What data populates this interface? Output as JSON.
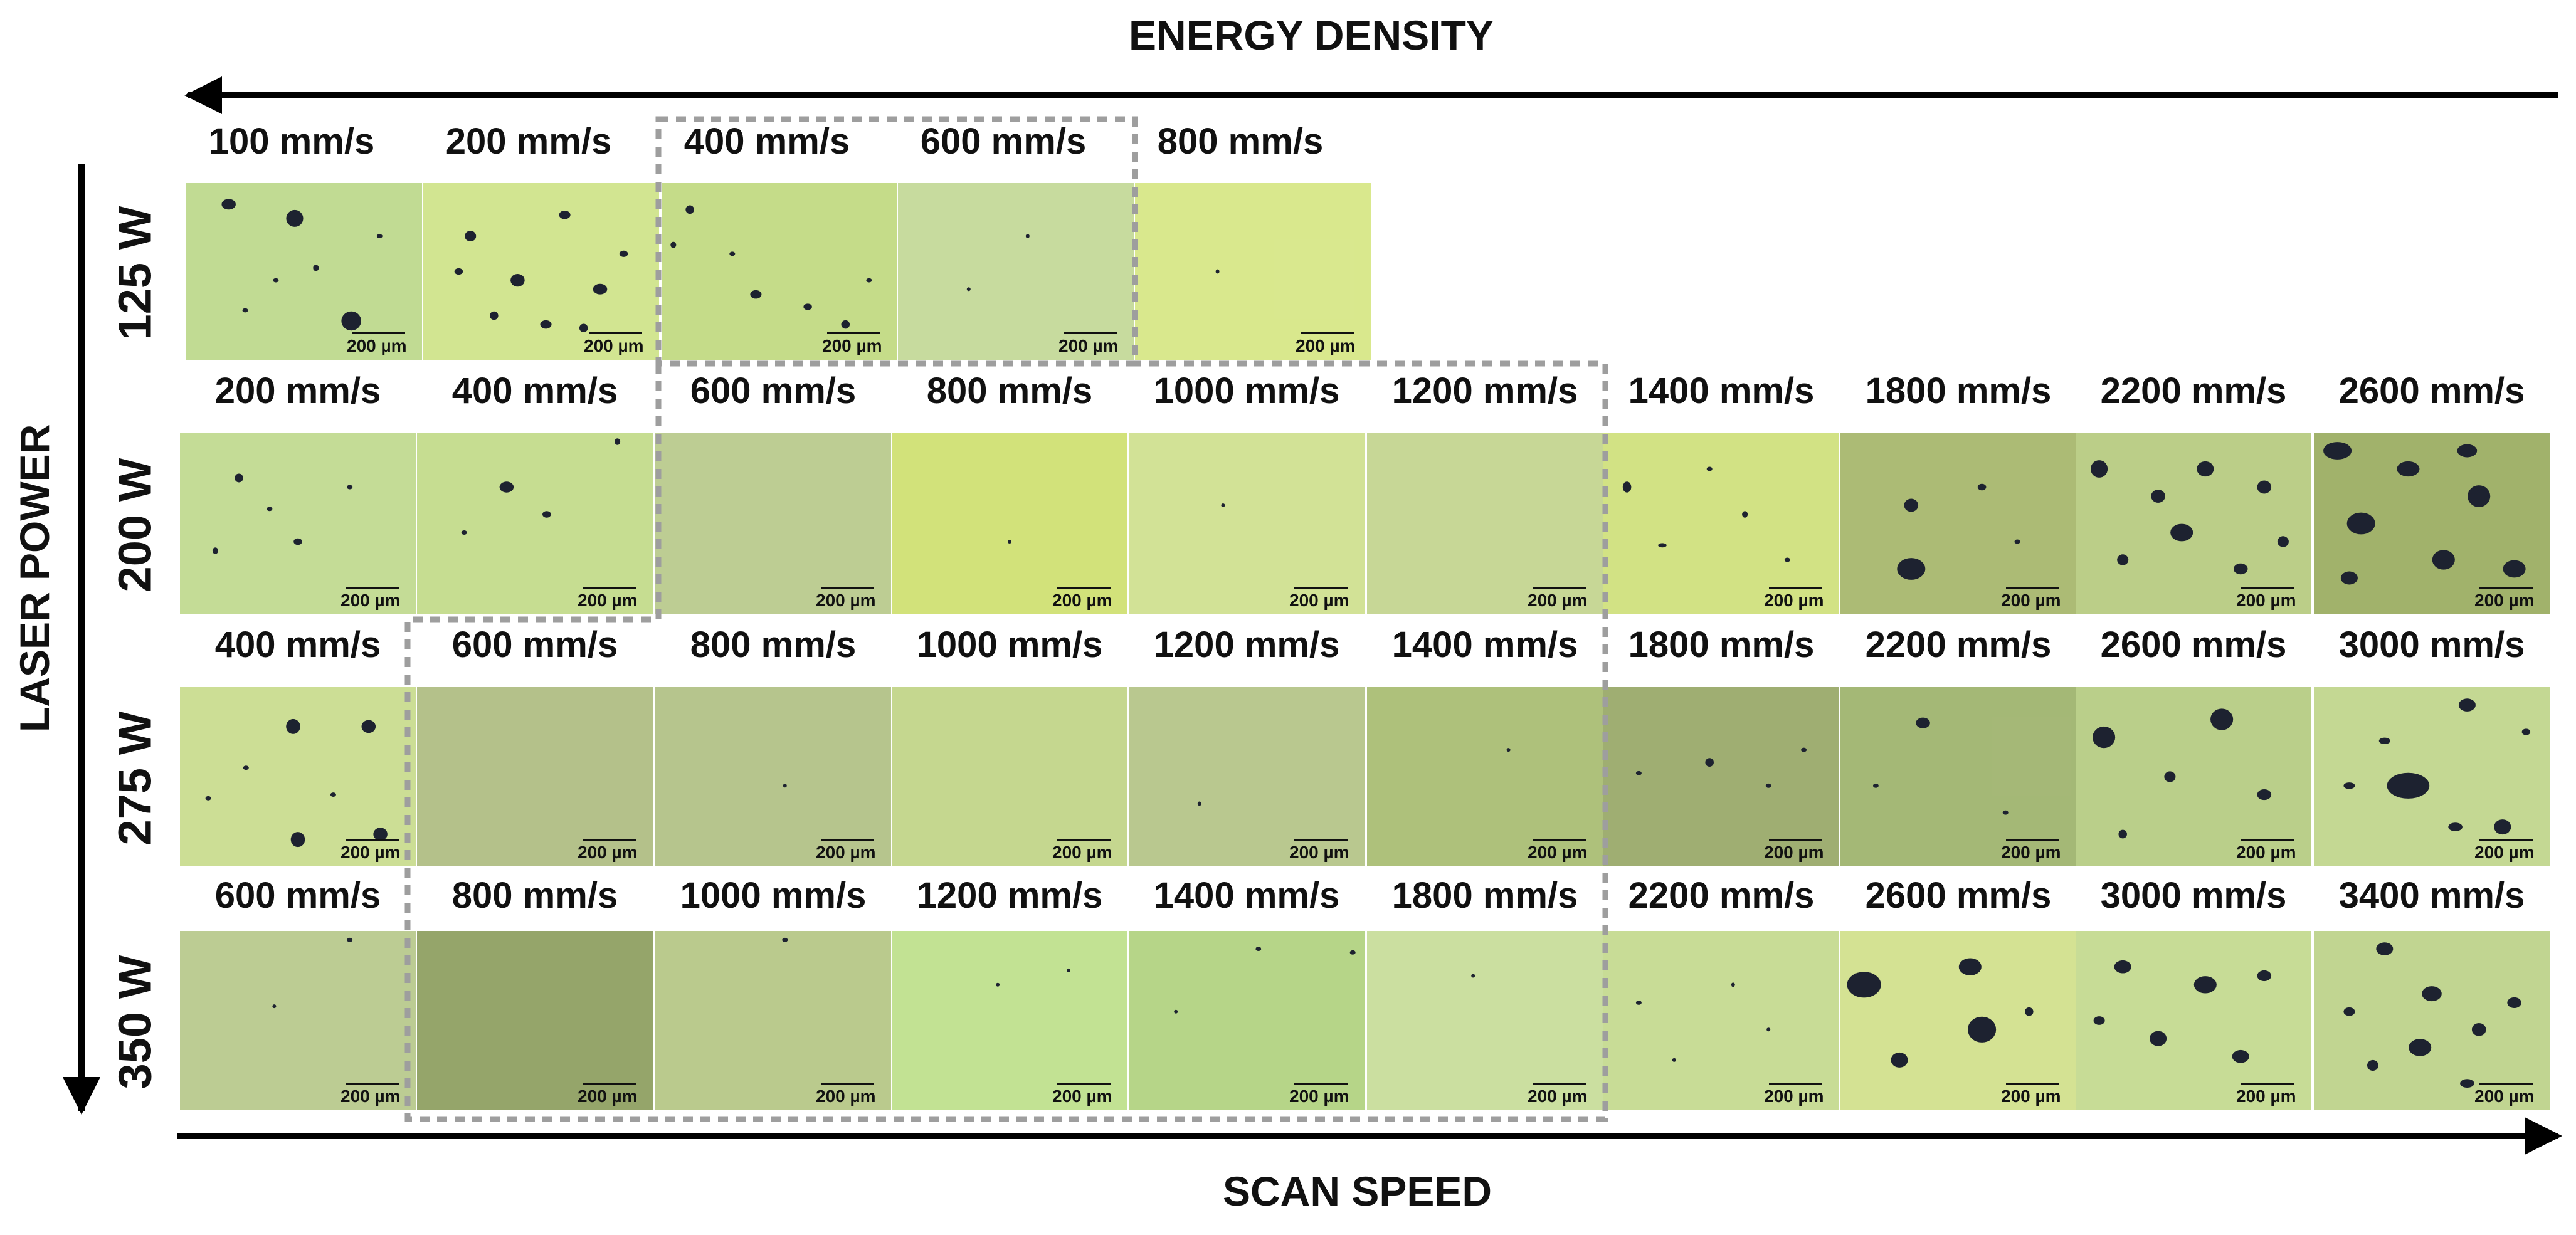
{
  "energy_density_label": "ENERGY DENSITY",
  "scan_speed_label": "SCAN SPEED",
  "laser_power_label": "LASER POWER",
  "scale_bar_text": "200 µm",
  "colors": {
    "text": "#111111",
    "arrow": "#000000",
    "dash": "#9e9e9e",
    "pore": "#1d2230"
  },
  "rows": [
    {
      "power": "125 W",
      "samples": [
        {
          "speed": "100 mm/s",
          "tint": "#bcd88a",
          "pores": [
            [
              0.18,
              0.12,
              0.05,
              0.05
            ],
            [
              0.46,
              0.2,
              0.06,
              0.08
            ],
            [
              0.7,
              0.78,
              0.07,
              0.09
            ],
            [
              0.38,
              0.55,
              0.02,
              0.02
            ],
            [
              0.55,
              0.48,
              0.02,
              0.03
            ],
            [
              0.25,
              0.72,
              0.02,
              0.02
            ],
            [
              0.82,
              0.3,
              0.02,
              0.02
            ]
          ]
        },
        {
          "speed": "200 mm/s",
          "tint": "#cfe388",
          "pores": [
            [
              0.2,
              0.3,
              0.04,
              0.05
            ],
            [
              0.6,
              0.18,
              0.04,
              0.04
            ],
            [
              0.4,
              0.55,
              0.05,
              0.06
            ],
            [
              0.75,
              0.6,
              0.05,
              0.05
            ],
            [
              0.3,
              0.75,
              0.03,
              0.04
            ],
            [
              0.85,
              0.4,
              0.03,
              0.03
            ],
            [
              0.52,
              0.8,
              0.04,
              0.04
            ],
            [
              0.15,
              0.5,
              0.03,
              0.03
            ],
            [
              0.68,
              0.82,
              0.03,
              0.04
            ]
          ]
        },
        {
          "speed": "400 mm/s",
          "tint": "#c1d97f",
          "pores": [
            [
              0.12,
              0.15,
              0.03,
              0.04
            ],
            [
              0.4,
              0.63,
              0.04,
              0.04
            ],
            [
              0.62,
              0.7,
              0.03,
              0.03
            ],
            [
              0.3,
              0.4,
              0.02,
              0.02
            ],
            [
              0.78,
              0.8,
              0.03,
              0.04
            ],
            [
              0.05,
              0.35,
              0.02,
              0.03
            ],
            [
              0.88,
              0.55,
              0.02,
              0.02
            ]
          ]
        },
        {
          "speed": "600 mm/s",
          "tint": "#c3d896",
          "pores": [
            [
              0.55,
              0.3,
              0.01,
              0.02
            ],
            [
              0.3,
              0.6,
              0.01,
              0.01
            ]
          ]
        },
        {
          "speed": "800 mm/s",
          "tint": "#d6e684",
          "pores": [
            [
              0.35,
              0.5,
              0.01,
              0.02
            ]
          ]
        }
      ]
    },
    {
      "power": "200 W",
      "samples": [
        {
          "speed": "200 mm/s",
          "tint": "#bfd98e",
          "pores": [
            [
              0.25,
              0.25,
              0.03,
              0.04
            ],
            [
              0.5,
              0.6,
              0.03,
              0.03
            ],
            [
              0.15,
              0.65,
              0.02,
              0.03
            ],
            [
              0.72,
              0.3,
              0.02,
              0.02
            ],
            [
              0.38,
              0.42,
              0.02,
              0.02
            ]
          ]
        },
        {
          "speed": "400 mm/s",
          "tint": "#c2db88",
          "pores": [
            [
              0.38,
              0.3,
              0.05,
              0.05
            ],
            [
              0.55,
              0.45,
              0.03,
              0.03
            ],
            [
              0.2,
              0.55,
              0.02,
              0.02
            ],
            [
              0.85,
              0.05,
              0.02,
              0.03
            ]
          ]
        },
        {
          "speed": "600 mm/s",
          "tint": "#b8c98a",
          "pores": []
        },
        {
          "speed": "800 mm/s",
          "tint": "#cfe06f",
          "pores": [
            [
              0.5,
              0.6,
              0.01,
              0.01
            ]
          ]
        },
        {
          "speed": "1000 mm/s",
          "tint": "#cfe08e",
          "pores": [
            [
              0.4,
              0.4,
              0.01,
              0.01
            ]
          ]
        },
        {
          "speed": "1200 mm/s",
          "tint": "#c3d48e",
          "pores": []
        },
        {
          "speed": "1400 mm/s",
          "tint": "#cfe07a",
          "pores": [
            [
              0.1,
              0.3,
              0.03,
              0.05
            ],
            [
              0.25,
              0.62,
              0.03,
              0.02
            ],
            [
              0.6,
              0.45,
              0.02,
              0.03
            ],
            [
              0.45,
              0.2,
              0.02,
              0.02
            ],
            [
              0.78,
              0.7,
              0.02,
              0.02
            ]
          ]
        },
        {
          "speed": "1800 mm/s",
          "tint": "#a5b66a",
          "pores": [
            [
              0.3,
              0.4,
              0.05,
              0.06
            ],
            [
              0.3,
              0.75,
              0.1,
              0.1
            ],
            [
              0.6,
              0.3,
              0.03,
              0.03
            ],
            [
              0.75,
              0.6,
              0.02,
              0.02
            ]
          ]
        },
        {
          "speed": "2200 mm/s",
          "tint": "#b6ca7e",
          "pores": [
            [
              0.1,
              0.2,
              0.06,
              0.08
            ],
            [
              0.35,
              0.35,
              0.05,
              0.06
            ],
            [
              0.55,
              0.2,
              0.06,
              0.07
            ],
            [
              0.45,
              0.55,
              0.08,
              0.08
            ],
            [
              0.8,
              0.3,
              0.05,
              0.06
            ],
            [
              0.2,
              0.7,
              0.04,
              0.05
            ],
            [
              0.7,
              0.75,
              0.05,
              0.05
            ],
            [
              0.88,
              0.6,
              0.04,
              0.05
            ]
          ]
        },
        {
          "speed": "2600 mm/s",
          "tint": "#9aac5f",
          "pores": [
            [
              0.1,
              0.1,
              0.1,
              0.08
            ],
            [
              0.4,
              0.2,
              0.08,
              0.07
            ],
            [
              0.7,
              0.35,
              0.08,
              0.1
            ],
            [
              0.2,
              0.5,
              0.1,
              0.1
            ],
            [
              0.55,
              0.7,
              0.08,
              0.09
            ],
            [
              0.85,
              0.75,
              0.08,
              0.08
            ],
            [
              0.15,
              0.8,
              0.06,
              0.06
            ],
            [
              0.65,
              0.1,
              0.07,
              0.06
            ]
          ]
        }
      ]
    },
    {
      "power": "275 W",
      "samples": [
        {
          "speed": "400 mm/s",
          "tint": "#c8dc8c",
          "pores": [
            [
              0.48,
              0.22,
              0.05,
              0.07
            ],
            [
              0.8,
              0.22,
              0.05,
              0.06
            ],
            [
              0.5,
              0.85,
              0.05,
              0.07
            ],
            [
              0.85,
              0.82,
              0.05,
              0.06
            ],
            [
              0.28,
              0.45,
              0.02,
              0.02
            ],
            [
              0.65,
              0.6,
              0.02,
              0.02
            ],
            [
              0.12,
              0.62,
              0.02,
              0.02
            ]
          ]
        },
        {
          "speed": "600 mm/s",
          "tint": "#aebc80",
          "pores": []
        },
        {
          "speed": "800 mm/s",
          "tint": "#b0c084",
          "pores": [
            [
              0.55,
              0.55,
              0.01,
              0.01
            ]
          ]
        },
        {
          "speed": "1000 mm/s",
          "tint": "#c0d486",
          "pores": []
        },
        {
          "speed": "1200 mm/s",
          "tint": "#b4c486",
          "pores": [
            [
              0.3,
              0.65,
              0.01,
              0.02
            ]
          ]
        },
        {
          "speed": "1400 mm/s",
          "tint": "#a8bc70",
          "pores": [
            [
              0.6,
              0.35,
              0.01,
              0.01
            ]
          ]
        },
        {
          "speed": "1800 mm/s",
          "tint": "#97a866",
          "pores": [
            [
              0.45,
              0.42,
              0.03,
              0.04
            ],
            [
              0.15,
              0.48,
              0.02,
              0.02
            ],
            [
              0.7,
              0.55,
              0.02,
              0.02
            ],
            [
              0.85,
              0.35,
              0.02,
              0.02
            ]
          ]
        },
        {
          "speed": "2200 mm/s",
          "tint": "#9db26b",
          "pores": [
            [
              0.35,
              0.2,
              0.05,
              0.05
            ],
            [
              0.15,
              0.55,
              0.02,
              0.02
            ],
            [
              0.7,
              0.7,
              0.02,
              0.02
            ]
          ]
        },
        {
          "speed": "2600 mm/s",
          "tint": "#b5cb80",
          "pores": [
            [
              0.12,
              0.28,
              0.08,
              0.1
            ],
            [
              0.62,
              0.18,
              0.08,
              0.1
            ],
            [
              0.4,
              0.5,
              0.04,
              0.05
            ],
            [
              0.8,
              0.6,
              0.05,
              0.05
            ],
            [
              0.2,
              0.82,
              0.03,
              0.04
            ]
          ]
        },
        {
          "speed": "3000 mm/s",
          "tint": "#bfd58a",
          "pores": [
            [
              0.65,
              0.1,
              0.06,
              0.06
            ],
            [
              0.3,
              0.3,
              0.04,
              0.03
            ],
            [
              0.4,
              0.55,
              0.15,
              0.12
            ],
            [
              0.8,
              0.78,
              0.06,
              0.07
            ],
            [
              0.15,
              0.55,
              0.04,
              0.03
            ],
            [
              0.6,
              0.78,
              0.05,
              0.04
            ],
            [
              0.9,
              0.25,
              0.03,
              0.03
            ]
          ]
        }
      ]
    },
    {
      "power": "350 W",
      "samples": [
        {
          "speed": "600 mm/s",
          "tint": "#b7c88a",
          "pores": [
            [
              0.72,
              0.05,
              0.02,
              0.02
            ],
            [
              0.4,
              0.42,
              0.01,
              0.01
            ]
          ]
        },
        {
          "speed": "800 mm/s",
          "tint": "#8c9e5e",
          "pores": []
        },
        {
          "speed": "1000 mm/s",
          "tint": "#b5c684",
          "pores": [
            [
              0.55,
              0.05,
              0.02,
              0.02
            ]
          ]
        },
        {
          "speed": "1200 mm/s",
          "tint": "#bde08a",
          "pores": [
            [
              0.45,
              0.3,
              0.01,
              0.01
            ],
            [
              0.75,
              0.22,
              0.01,
              0.01
            ]
          ]
        },
        {
          "speed": "1400 mm/s",
          "tint": "#b0d27e",
          "pores": [
            [
              0.55,
              0.1,
              0.02,
              0.02
            ],
            [
              0.2,
              0.45,
              0.01,
              0.01
            ],
            [
              0.95,
              0.12,
              0.02,
              0.02
            ]
          ]
        },
        {
          "speed": "1800 mm/s",
          "tint": "#c7dd98",
          "pores": [
            [
              0.45,
              0.25,
              0.01,
              0.01
            ]
          ]
        },
        {
          "speed": "2200 mm/s",
          "tint": "#c4da8e",
          "pores": [
            [
              0.15,
              0.4,
              0.02,
              0.02
            ],
            [
              0.55,
              0.3,
              0.01,
              0.02
            ],
            [
              0.7,
              0.55,
              0.01,
              0.01
            ],
            [
              0.3,
              0.72,
              0.01,
              0.01
            ]
          ]
        },
        {
          "speed": "2600 mm/s",
          "tint": "#d1e08a",
          "pores": [
            [
              0.1,
              0.3,
              0.12,
              0.12
            ],
            [
              0.55,
              0.2,
              0.08,
              0.08
            ],
            [
              0.6,
              0.55,
              0.1,
              0.12
            ],
            [
              0.25,
              0.72,
              0.06,
              0.07
            ],
            [
              0.8,
              0.45,
              0.03,
              0.04
            ]
          ]
        },
        {
          "speed": "3000 mm/s",
          "tint": "#c3d98e",
          "pores": [
            [
              0.2,
              0.2,
              0.06,
              0.06
            ],
            [
              0.55,
              0.3,
              0.08,
              0.08
            ],
            [
              0.35,
              0.6,
              0.06,
              0.07
            ],
            [
              0.8,
              0.25,
              0.05,
              0.05
            ],
            [
              0.7,
              0.7,
              0.06,
              0.06
            ],
            [
              0.1,
              0.5,
              0.04,
              0.04
            ]
          ]
        },
        {
          "speed": "3400 mm/s",
          "tint": "#bcd288",
          "pores": [
            [
              0.3,
              0.1,
              0.06,
              0.06
            ],
            [
              0.5,
              0.35,
              0.07,
              0.07
            ],
            [
              0.15,
              0.45,
              0.04,
              0.04
            ],
            [
              0.7,
              0.55,
              0.05,
              0.06
            ],
            [
              0.45,
              0.65,
              0.08,
              0.08
            ],
            [
              0.85,
              0.4,
              0.05,
              0.05
            ],
            [
              0.25,
              0.75,
              0.04,
              0.05
            ],
            [
              0.65,
              0.85,
              0.05,
              0.04
            ]
          ]
        }
      ]
    }
  ]
}
